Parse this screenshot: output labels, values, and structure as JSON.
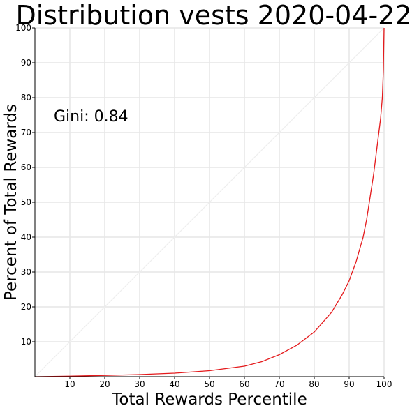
{
  "chart_data": {
    "type": "line",
    "title": "Distribution vests 2020-04-22",
    "xlabel": "Total Rewards Percentile",
    "ylabel": "Percent of Total Rewards",
    "xlim": [
      0,
      100
    ],
    "ylim": [
      0,
      100
    ],
    "x_ticks": [
      10,
      20,
      30,
      40,
      50,
      60,
      70,
      80,
      90,
      100
    ],
    "y_ticks": [
      10,
      20,
      30,
      40,
      50,
      60,
      70,
      80,
      90,
      100
    ],
    "grid": true,
    "annotation": "Gini: 0.84",
    "series": [
      {
        "color": "#e41a1c",
        "x": [
          0,
          10,
          20,
          30,
          40,
          50,
          60,
          65,
          70,
          75,
          80,
          85,
          88,
          90,
          92,
          94,
          95,
          96,
          97,
          98,
          99,
          99.5,
          99.8,
          100
        ],
        "y": [
          0,
          0.15,
          0.35,
          0.6,
          1.0,
          1.7,
          3.0,
          4.3,
          6.3,
          9.0,
          12.8,
          18.5,
          23.5,
          27.5,
          33.0,
          40.0,
          45.0,
          51.5,
          58.0,
          66.0,
          74.0,
          80.0,
          88.0,
          100
        ]
      },
      {
        "color": "#eeeeee",
        "x": [
          0,
          100
        ],
        "y": [
          0,
          100
        ]
      }
    ]
  }
}
